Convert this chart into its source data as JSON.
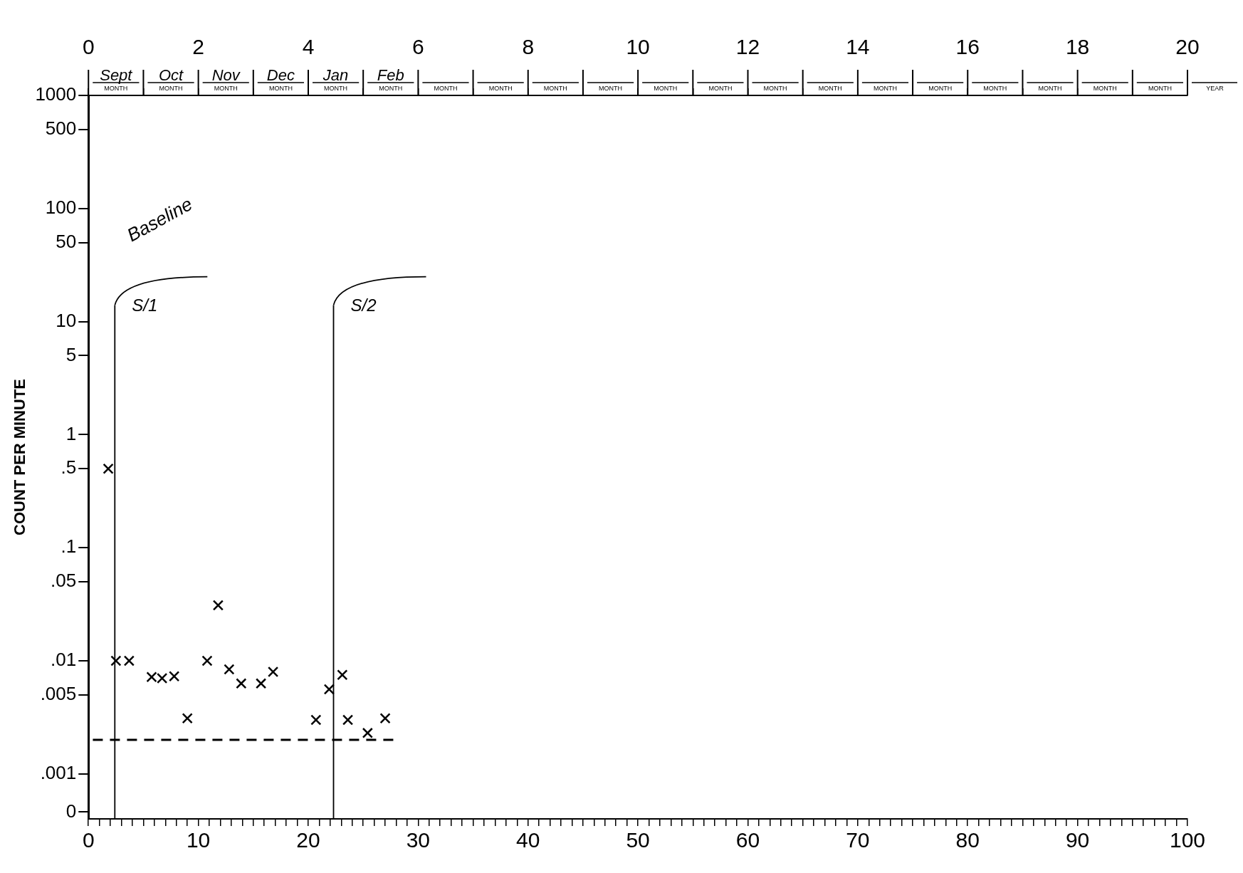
{
  "chart_data": {
    "type": "scatter",
    "ylabel": "COUNT PER MINUTE",
    "log": "y",
    "grid": false,
    "legend": false,
    "marker": "cross",
    "xlim": [
      0,
      100
    ],
    "xticks": [
      0,
      {
        "value": 1,
        "label": null
      },
      {
        "value": 2,
        "label": null
      },
      {
        "value": 3,
        "label": null
      },
      {
        "value": 4,
        "label": null
      },
      {
        "value": 5,
        "label": null
      },
      {
        "value": 6,
        "label": null
      },
      {
        "value": 7,
        "label": null
      },
      {
        "value": 8,
        "label": null
      },
      {
        "value": 9,
        "label": null
      },
      10,
      {
        "value": 11,
        "label": null
      },
      {
        "value": 12,
        "label": null
      },
      {
        "value": 13,
        "label": null
      },
      {
        "value": 14,
        "label": null
      },
      {
        "value": 15,
        "label": null
      },
      {
        "value": 16,
        "label": null
      },
      {
        "value": 17,
        "label": null
      },
      {
        "value": 18,
        "label": null
      },
      {
        "value": 19,
        "label": null
      },
      20,
      {
        "value": 21,
        "label": null
      },
      {
        "value": 22,
        "label": null
      },
      {
        "value": 23,
        "label": null
      },
      {
        "value": 24,
        "label": null
      },
      {
        "value": 25,
        "label": null
      },
      {
        "value": 26,
        "label": null
      },
      {
        "value": 27,
        "label": null
      },
      {
        "value": 28,
        "label": null
      },
      {
        "value": 29,
        "label": null
      },
      30,
      {
        "value": 31,
        "label": null
      },
      {
        "value": 32,
        "label": null
      },
      {
        "value": 33,
        "label": null
      },
      {
        "value": 34,
        "label": null
      },
      {
        "value": 35,
        "label": null
      },
      {
        "value": 36,
        "label": null
      },
      {
        "value": 37,
        "label": null
      },
      {
        "value": 38,
        "label": null
      },
      {
        "value": 39,
        "label": null
      },
      40,
      {
        "value": 41,
        "label": null
      },
      {
        "value": 42,
        "label": null
      },
      {
        "value": 43,
        "label": null
      },
      {
        "value": 44,
        "label": null
      },
      {
        "value": 45,
        "label": null
      },
      {
        "value": 46,
        "label": null
      },
      {
        "value": 47,
        "label": null
      },
      {
        "value": 48,
        "label": null
      },
      {
        "value": 49,
        "label": null
      },
      50,
      {
        "value": 51,
        "label": null
      },
      {
        "value": 52,
        "label": null
      },
      {
        "value": 53,
        "label": null
      },
      {
        "value": 54,
        "label": null
      },
      {
        "value": 55,
        "label": null
      },
      {
        "value": 56,
        "label": null
      },
      {
        "value": 57,
        "label": null
      },
      {
        "value": 58,
        "label": null
      },
      {
        "value": 59,
        "label": null
      },
      60,
      {
        "value": 61,
        "label": null
      },
      {
        "value": 62,
        "label": null
      },
      {
        "value": 63,
        "label": null
      },
      {
        "value": 64,
        "label": null
      },
      {
        "value": 65,
        "label": null
      },
      {
        "value": 66,
        "label": null
      },
      {
        "value": 67,
        "label": null
      },
      {
        "value": 68,
        "label": null
      },
      {
        "value": 69,
        "label": null
      },
      70,
      {
        "value": 71,
        "label": null
      },
      {
        "value": 72,
        "label": null
      },
      {
        "value": 73,
        "label": null
      },
      {
        "value": 74,
        "label": null
      },
      {
        "value": 75,
        "label": null
      },
      {
        "value": 76,
        "label": null
      },
      {
        "value": 77,
        "label": null
      },
      {
        "value": 78,
        "label": null
      },
      {
        "value": 79,
        "label": null
      },
      80,
      {
        "value": 81,
        "label": null
      },
      {
        "value": 82,
        "label": null
      },
      {
        "value": 83,
        "label": null
      },
      {
        "value": 84,
        "label": null
      },
      {
        "value": 85,
        "label": null
      },
      {
        "value": 86,
        "label": null
      },
      {
        "value": 87,
        "label": null
      },
      {
        "value": 88,
        "label": null
      },
      {
        "value": 89,
        "label": null
      },
      90,
      {
        "value": 91,
        "label": null
      },
      {
        "value": 92,
        "label": null
      },
      {
        "value": 93,
        "label": null
      },
      {
        "value": 94,
        "label": null
      },
      {
        "value": 95,
        "label": null
      },
      {
        "value": 96,
        "label": null
      },
      {
        "value": 97,
        "label": null
      },
      {
        "value": 98,
        "label": null
      },
      {
        "value": 99,
        "label": null
      },
      100
    ],
    "x2lim": [
      0,
      20
    ],
    "x2ticks": [
      0,
      {
        "value": 1,
        "label": null
      },
      2,
      {
        "value": 3,
        "label": null
      },
      4,
      {
        "value": 5,
        "label": null
      },
      6,
      {
        "value": 7,
        "label": null
      },
      8,
      {
        "value": 9,
        "label": null
      },
      10,
      {
        "value": 11,
        "label": null
      },
      12,
      {
        "value": 13,
        "label": null
      },
      14,
      {
        "value": 15,
        "label": null
      },
      16,
      {
        "value": 17,
        "label": null
      },
      18,
      {
        "value": 19,
        "label": null
      },
      20
    ],
    "ylim": [
      0.0004,
      1000
    ],
    "yticks": [
      {
        "value": 0.00046,
        "label": "0"
      },
      {
        "value": 0.001,
        "label": ".001"
      },
      {
        "value": 0.005,
        "label": ".005"
      },
      {
        "value": 0.01,
        "label": ".01"
      },
      {
        "value": 0.05,
        "label": ".05"
      },
      {
        "value": 0.1,
        "label": ".1"
      },
      {
        "value": 0.5,
        "label": ".5"
      },
      1,
      5,
      10,
      50,
      100,
      500,
      1000
    ],
    "ref_lines": [
      {
        "axis": "x",
        "value": 2.4,
        "label": "S/1"
      },
      {
        "axis": "x",
        "value": 22.3,
        "label": "S/2"
      }
    ],
    "series": [
      {
        "type": "scatter",
        "color": "#000000",
        "x": [
          1.8,
          2.5,
          3.7,
          5.75,
          6.7,
          7.8,
          9.0,
          10.8,
          11.8,
          12.8,
          13.9,
          15.7,
          16.8,
          20.7,
          21.9,
          23.1,
          23.6,
          25.4,
          27.0
        ],
        "values": [
          0.5,
          0.01,
          0.01,
          0.0072,
          0.007,
          0.0073,
          0.0031,
          0.01,
          0.031,
          0.0084,
          0.0063,
          0.0063,
          0.008,
          0.003,
          0.0056,
          0.0075,
          0.003,
          0.0023,
          0.0031
        ]
      },
      {
        "type": "line",
        "color": "#000000",
        "line_style": "dashed",
        "marker": "none",
        "x": [
          0.4,
          27.8
        ],
        "values": [
          0.002,
          0.002
        ]
      }
    ],
    "annotations": [
      "Baseline",
      "Sept",
      "Oct",
      "Nov",
      "Dec",
      "Jan",
      "Feb",
      "MONTH",
      "MONTH",
      "MONTH",
      "MONTH",
      "MONTH",
      "MONTH",
      "MONTH",
      "MONTH",
      "MONTH",
      "MONTH",
      "MONTH",
      "MONTH",
      "MONTH",
      "MONTH",
      "MONTH",
      "MONTH",
      "MONTH",
      "MONTH",
      "MONTH",
      "MONTH",
      "YEAR"
    ]
  }
}
